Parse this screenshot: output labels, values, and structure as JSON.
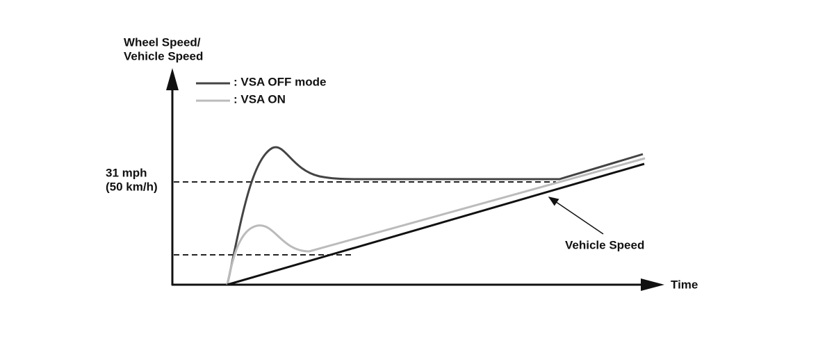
{
  "y_axis": {
    "label": [
      "Wheel Speed/",
      "Vehicle Speed"
    ]
  },
  "x_axis": {
    "label": "Time"
  },
  "legend": [
    {
      "label": ": VSA OFF mode"
    },
    {
      "label": ": VSA ON"
    }
  ],
  "reference": {
    "label": [
      "31 mph",
      "(50 km/h)"
    ]
  },
  "annotation": {
    "label": "Vehicle Speed"
  }
}
